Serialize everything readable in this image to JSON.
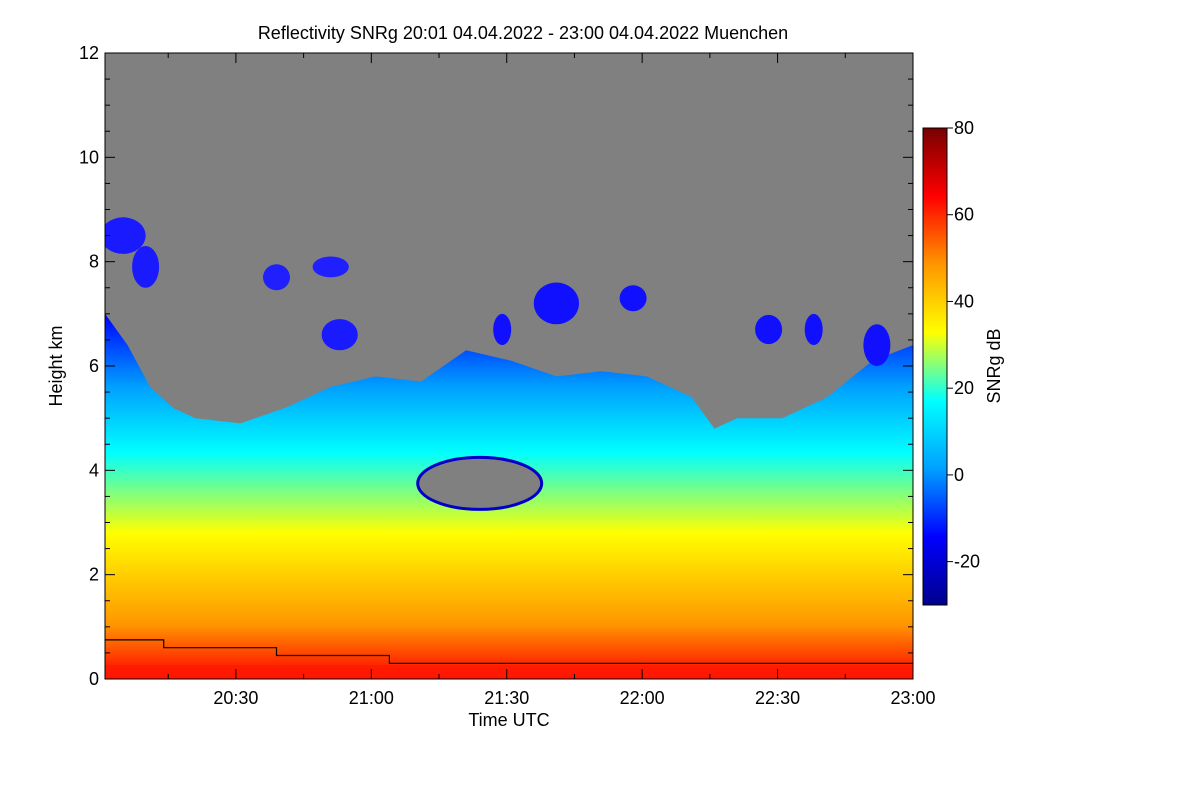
{
  "chart_data": {
    "type": "heatmap",
    "title": "Reflectivity SNRg   20:01 04.04.2022 - 23:00 04.04.2022 Muenchen",
    "xlabel": "Time UTC",
    "ylabel": "Height km",
    "xlim": [
      "20:01",
      "23:00"
    ],
    "ylim": [
      0,
      12
    ],
    "x_ticks": [
      {
        "label": "20:30",
        "minutes": 29
      },
      {
        "label": "21:00",
        "minutes": 59
      },
      {
        "label": "21:30",
        "minutes": 89
      },
      {
        "label": "22:00",
        "minutes": 119
      },
      {
        "label": "22:30",
        "minutes": 149
      },
      {
        "label": "23:00",
        "minutes": 179
      }
    ],
    "y_ticks": [
      0,
      2,
      4,
      6,
      8,
      10,
      12
    ],
    "colorbar": {
      "label": "SNRg dB",
      "range": [
        -30,
        80
      ],
      "ticks": [
        -20,
        0,
        20,
        40,
        60,
        80
      ],
      "colors": [
        "#00008c",
        "#0000ff",
        "#00a0ff",
        "#00ffff",
        "#ffff00",
        "#ff9600",
        "#ff0000",
        "#780000"
      ]
    },
    "no_signal_color": "#808080",
    "signal_top_km": [
      [
        0,
        7.0
      ],
      [
        5,
        6.4
      ],
      [
        10,
        5.6
      ],
      [
        15,
        5.2
      ],
      [
        20,
        5.0
      ],
      [
        30,
        4.9
      ],
      [
        40,
        5.2
      ],
      [
        50,
        5.6
      ],
      [
        60,
        5.8
      ],
      [
        70,
        5.7
      ],
      [
        80,
        6.3
      ],
      [
        90,
        6.1
      ],
      [
        100,
        5.8
      ],
      [
        110,
        5.9
      ],
      [
        120,
        5.8
      ],
      [
        130,
        5.4
      ],
      [
        135,
        4.8
      ],
      [
        140,
        5.0
      ],
      [
        150,
        5.0
      ],
      [
        160,
        5.4
      ],
      [
        170,
        6.1
      ],
      [
        179,
        6.4
      ]
    ],
    "mixing_layer_km": [
      {
        "from": 0,
        "to": 13,
        "height": 0.75
      },
      {
        "from": 13,
        "to": 38,
        "height": 0.6
      },
      {
        "from": 38,
        "to": 63,
        "height": 0.45
      },
      {
        "from": 63,
        "to": 179,
        "height": 0.3
      }
    ]
  }
}
